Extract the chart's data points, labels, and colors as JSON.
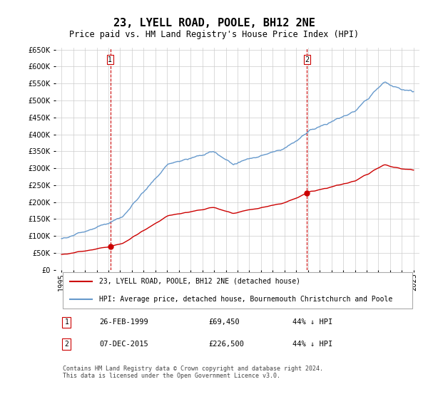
{
  "title": "23, LYELL ROAD, POOLE, BH12 2NE",
  "subtitle": "Price paid vs. HM Land Registry's House Price Index (HPI)",
  "ylabel_max": 650000,
  "ylabel_step": 50000,
  "background_color": "#ffffff",
  "grid_color": "#cccccc",
  "hpi_color": "#6699cc",
  "price_color": "#cc0000",
  "marker_color": "#cc0000",
  "vline_color": "#cc0000",
  "transactions": [
    {
      "date_str": "26-FEB-1999",
      "year": 1999.15,
      "price": 69450,
      "label": "1"
    },
    {
      "date_str": "07-DEC-2015",
      "year": 2015.92,
      "price": 226500,
      "label": "2"
    }
  ],
  "legend_line1": "23, LYELL ROAD, POOLE, BH12 2NE (detached house)",
  "legend_line2": "HPI: Average price, detached house, Bournemouth Christchurch and Poole",
  "footer": "Contains HM Land Registry data © Crown copyright and database right 2024.\nThis data is licensed under the Open Government Licence v3.0.",
  "table_rows": [
    {
      "num": "1",
      "date": "26-FEB-1999",
      "price": "£69,450",
      "pct": "44% ↓ HPI"
    },
    {
      "num": "2",
      "date": "07-DEC-2015",
      "price": "£226,500",
      "pct": "44% ↓ HPI"
    }
  ]
}
